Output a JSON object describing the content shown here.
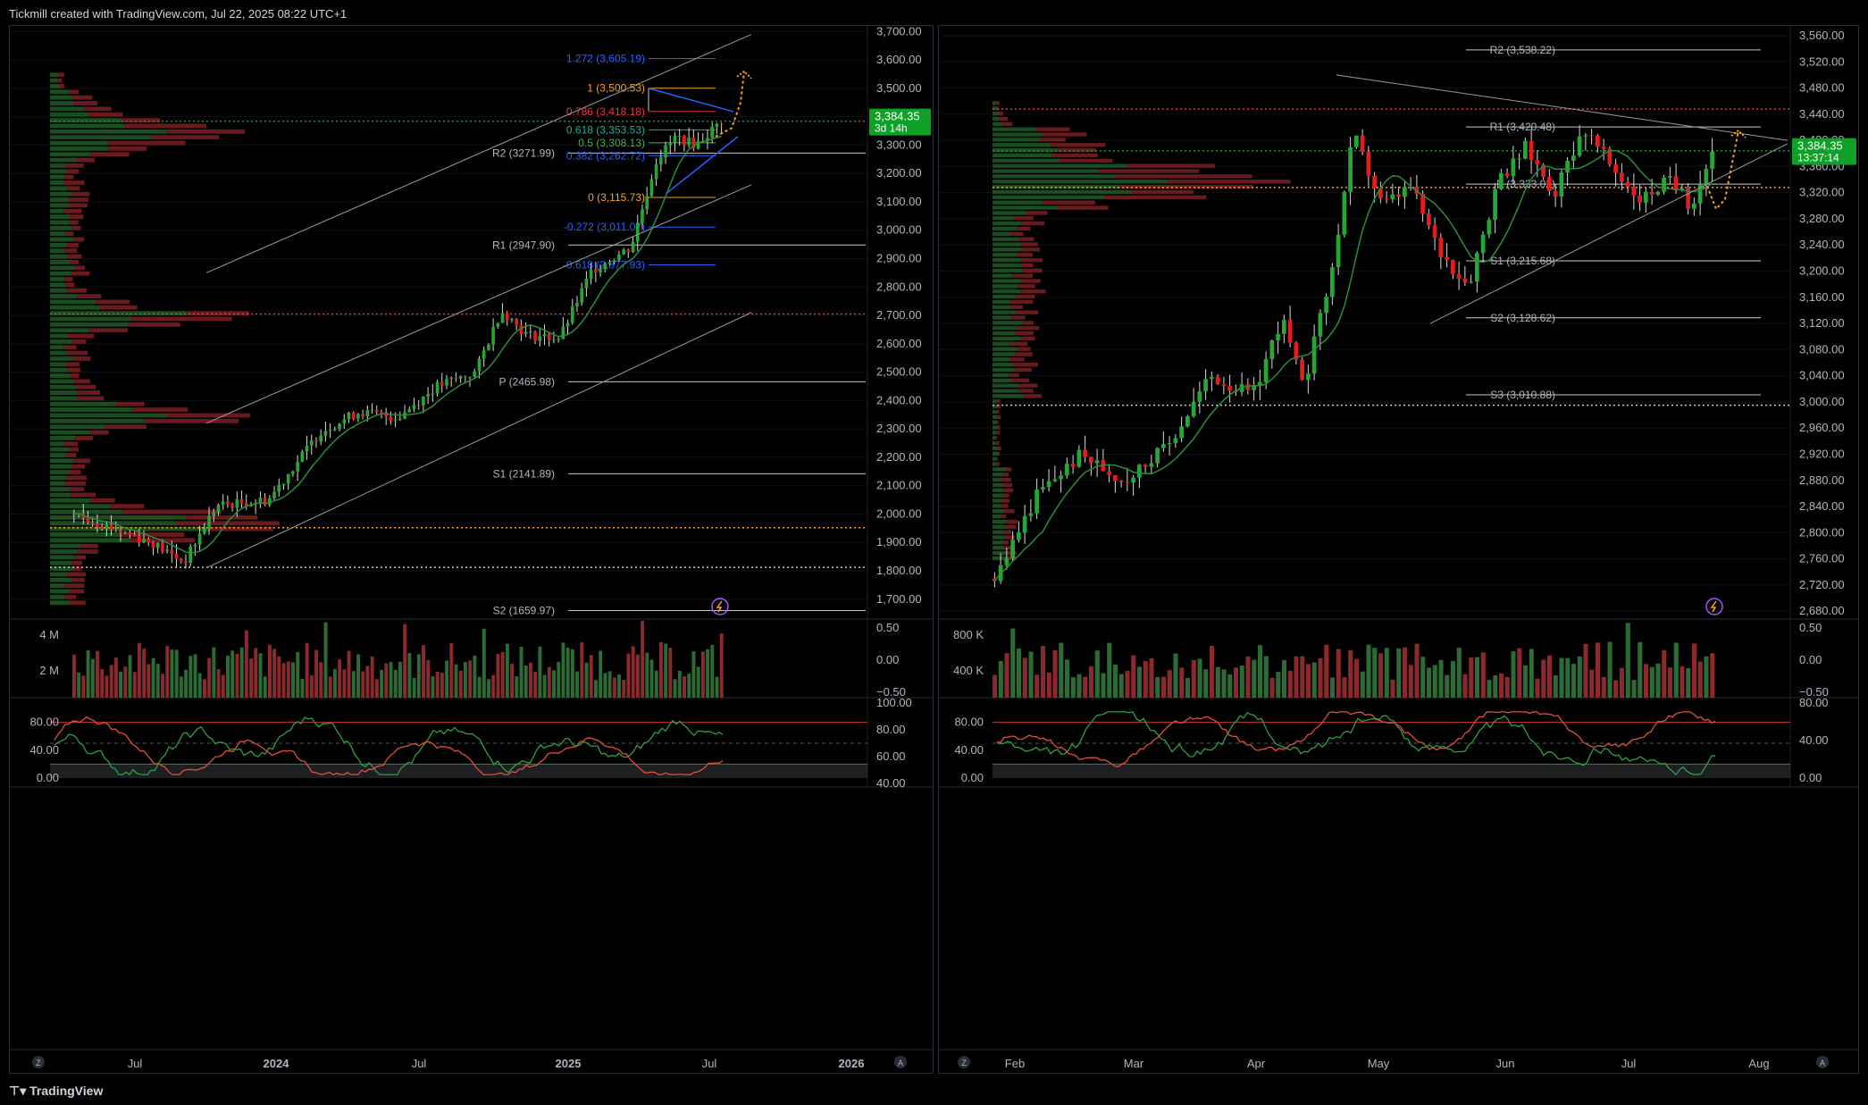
{
  "header": {
    "credit": "Tickmill created with TradingView.com, Jul 22, 2025 08:22 UTC+1"
  },
  "footer": {
    "brand": "TradingView"
  },
  "colors": {
    "up": "#1e8a2a",
    "down": "#e01e1e",
    "grid": "#1a1d26",
    "axis_text": "#b2b5be",
    "price_tag": "#0fa028",
    "orange": "#f7a21b",
    "blue": "#2962ff",
    "red_dotted": "#f23645"
  },
  "chart_data": [
    {
      "type": "candlestick",
      "panel": "left",
      "interval": "weekly",
      "x_ticks": [
        "Jul",
        "2024",
        "Jul",
        "2025",
        "Jul",
        "2026"
      ],
      "y_ticks": [
        "3,700.00",
        "3,600.00",
        "3,500.00",
        "3,400.00",
        "3,300.00",
        "3,200.00",
        "3,100.00",
        "3,000.00",
        "2,900.00",
        "2,800.00",
        "2,700.00",
        "2,600.00",
        "2,500.00",
        "2,400.00",
        "2,300.00",
        "2,200.00",
        "2,100.00",
        "2,000.00",
        "1,900.00",
        "1,800.00",
        "1,700.00"
      ],
      "ylim": [
        1630,
        3720
      ],
      "last_price": {
        "value": "3,384.35",
        "countdown": "3d 14h"
      },
      "pivots": [
        {
          "label": "R2 (3271.99)",
          "value": 3271.99
        },
        {
          "label": "R1 (2947.90)",
          "value": 2947.9
        },
        {
          "label": "P (2465.98)",
          "value": 2465.98
        },
        {
          "label": "S1 (2141.89)",
          "value": 2141.89
        },
        {
          "label": "S2 (1659.97)",
          "value": 1659.97
        }
      ],
      "fib_levels": [
        {
          "label": "1.272 (3,605.19)",
          "value": 3605.19,
          "color": "#2962ff"
        },
        {
          "label": "1 (3,500.53)",
          "value": 3500.53,
          "color": "#f7a21b"
        },
        {
          "label": "0.786 (3,418.18)",
          "value": 3418.18,
          "color": "#f23645"
        },
        {
          "label": "0.618 (3,353.53)",
          "value": 3353.53,
          "color": "#22ab94"
        },
        {
          "label": "0.5 (3,308.13)",
          "value": 3308.13,
          "color": "#4caf50"
        },
        {
          "label": "0.382 (3,262.72)",
          "value": 3262.72,
          "color": "#2962ff"
        },
        {
          "label": "0 (3,115.73)",
          "value": 3115.73,
          "color": "#f7a21b"
        },
        {
          "label": "-0.272 (3,011.07)",
          "value": 3011.07,
          "color": "#2962ff"
        },
        {
          "label": "-0.618 (2,877.93)",
          "value": 2877.93,
          "color": "#2962ff"
        }
      ],
      "horizontal_lines": [
        {
          "value": 3384,
          "style": "dotted",
          "color": "#0fa028"
        },
        {
          "value": 2705,
          "style": "dotted",
          "color": "#f23645"
        },
        {
          "value": 1952,
          "style": "dotted",
          "color": "#f7a21b"
        },
        {
          "value": 1812,
          "style": "dotted",
          "color": "#cccccc"
        }
      ],
      "volume": {
        "y_ticks": [
          "4 M",
          "2 M"
        ],
        "right_ticks": [
          "0.50",
          "0.00",
          "−0.50"
        ]
      },
      "oscillator": {
        "y_ticks": [
          "80.00",
          "40.00",
          "0.00"
        ],
        "right_ticks": [
          "100.00",
          "80.00",
          "60.00",
          "40.00"
        ]
      }
    },
    {
      "type": "candlestick",
      "panel": "right",
      "interval": "daily",
      "x_ticks": [
        "Feb",
        "Mar",
        "Apr",
        "May",
        "Jun",
        "Jul",
        "Aug"
      ],
      "y_ticks": [
        "3,560.00",
        "3,520.00",
        "3,480.00",
        "3,440.00",
        "3,400.00",
        "3,360.00",
        "3,320.00",
        "3,280.00",
        "3,240.00",
        "3,200.00",
        "3,160.00",
        "3,120.00",
        "3,080.00",
        "3,040.00",
        "3,000.00",
        "2,960.00",
        "2,920.00",
        "2,880.00",
        "2,840.00",
        "2,800.00",
        "2,760.00",
        "2,720.00",
        "2,680.00"
      ],
      "ylim": [
        2668,
        3575
      ],
      "last_price": {
        "value": "3,384.35",
        "countdown": "13:37:14"
      },
      "pivots": [
        {
          "label": "R2 (3,538.22)",
          "value": 3538.22
        },
        {
          "label": "R1 (3,420.48)",
          "value": 3420.48
        },
        {
          "label": "P (3,333.02)",
          "value": 3333.02
        },
        {
          "label": "S1 (3,215.68)",
          "value": 3215.68
        },
        {
          "label": "S2 (3,128.62)",
          "value": 3128.62
        },
        {
          "label": "S3 (3,010.88)",
          "value": 3010.88
        }
      ],
      "horizontal_lines": [
        {
          "value": 3448,
          "style": "dotted",
          "color": "#f23645"
        },
        {
          "value": 3384,
          "style": "dotted",
          "color": "#0fa028"
        },
        {
          "value": 3328,
          "style": "dotted",
          "color": "#f7a21b"
        },
        {
          "value": 2995,
          "style": "dotted",
          "color": "#cccccc"
        }
      ],
      "volume": {
        "y_ticks": [
          "800 K",
          "400 K"
        ],
        "right_ticks": [
          "0.50",
          "0.00",
          "−0.50"
        ]
      },
      "oscillator": {
        "y_ticks": [
          "80.00",
          "40.00",
          "0.00"
        ],
        "right_ticks": [
          "80.00",
          "40.00",
          "0.00"
        ]
      }
    }
  ]
}
